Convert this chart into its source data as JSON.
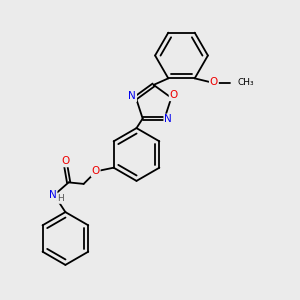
{
  "background_color": "#ebebeb",
  "bond_color": "#000000",
  "atom_colors": {
    "N": "#0000ee",
    "O": "#ee0000",
    "C": "#000000",
    "H": "#555555"
  },
  "bond_width": 1.3,
  "figsize": [
    3.0,
    3.0
  ],
  "dpi": 100,
  "xlim": [
    0,
    10
  ],
  "ylim": [
    0,
    10
  ]
}
